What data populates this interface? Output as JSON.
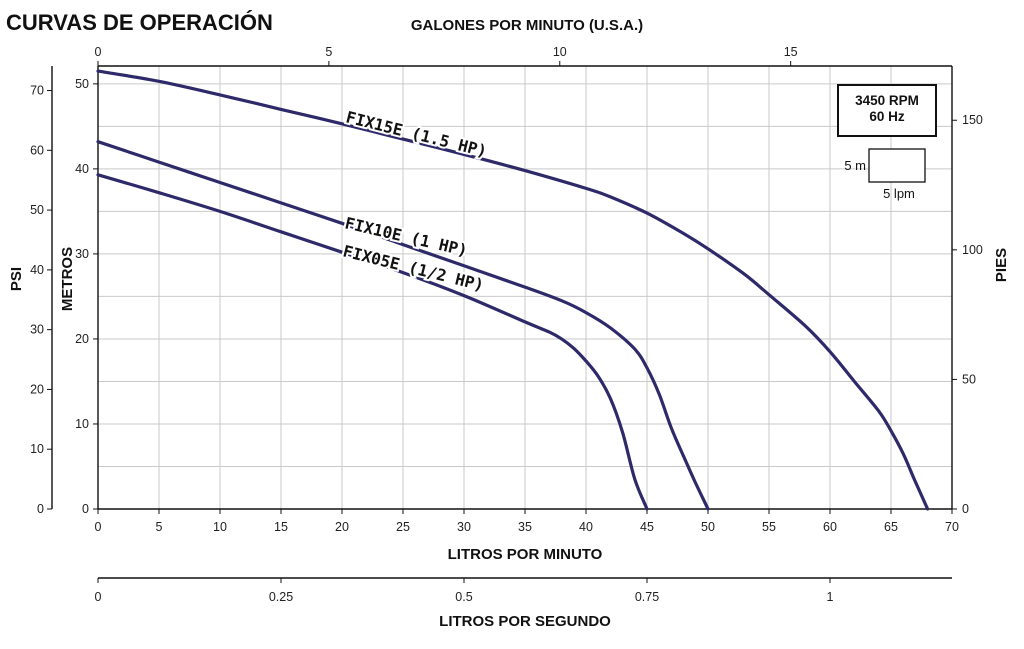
{
  "chart_data": {
    "type": "line",
    "title": "CURVAS DE OPERACIÓN",
    "xlabel": "LITROS POR MINUTO",
    "xlim": [
      0,
      70
    ],
    "x_ticks": [
      0,
      5,
      10,
      15,
      20,
      25,
      30,
      35,
      40,
      45,
      50,
      55,
      60,
      65,
      70
    ],
    "top_axis": {
      "label": "GALONES POR MINUTO (U.S.A.)",
      "ticks": [
        0,
        5,
        10,
        15
      ]
    },
    "bottom_axis2": {
      "label": "LITROS POR SEGUNDO",
      "ticks": [
        "0",
        "0.25",
        "0.5",
        "0.75",
        "1"
      ]
    },
    "left_axis_psi": {
      "label": "PSI",
      "ticks": [
        0,
        10,
        20,
        30,
        40,
        50,
        60,
        70
      ]
    },
    "left_axis_metros": {
      "label": "METROS",
      "ylim": [
        0,
        52.1
      ],
      "ticks": [
        0,
        10,
        20,
        30,
        40,
        50
      ]
    },
    "right_axis_pies": {
      "label": "PIES",
      "ticks": [
        0,
        50,
        100,
        150
      ]
    },
    "grid": true,
    "info_box": {
      "line1": "3450 RPM",
      "line2": "60 Hz"
    },
    "grid_legend": {
      "vertical": "5 m",
      "horizontal": "5 lpm"
    },
    "series": [
      {
        "name": "FIX15E (1.5 HP)",
        "color": "#2e2a6a",
        "x": [
          0,
          5,
          10,
          15,
          20,
          25,
          30,
          35,
          40,
          42,
          45,
          48,
          50,
          53,
          55,
          58,
          60,
          62,
          64,
          65,
          66,
          67,
          68
        ],
        "y": [
          51.5,
          50.3,
          48.7,
          47.0,
          45.3,
          43.5,
          41.7,
          39.8,
          37.7,
          36.7,
          34.8,
          32.4,
          30.6,
          27.6,
          25.2,
          21.5,
          18.5,
          15.0,
          11.5,
          9.2,
          6.5,
          3.2,
          0
        ]
      },
      {
        "name": "FIX10E (1 HP)",
        "color": "#2e2a6a",
        "x": [
          0,
          5,
          10,
          15,
          20,
          25,
          30,
          35,
          38,
          40,
          42,
          44,
          45,
          46,
          47,
          48,
          49,
          50
        ],
        "y": [
          43.2,
          40.8,
          38.4,
          36.0,
          33.6,
          31.1,
          28.6,
          26.1,
          24.5,
          23.1,
          21.3,
          18.8,
          16.6,
          13.5,
          9.5,
          6.2,
          3.0,
          0
        ]
      },
      {
        "name": "FIX05E (1/2 HP)",
        "color": "#2e2a6a",
        "x": [
          0,
          5,
          10,
          15,
          20,
          25,
          30,
          35,
          37,
          38,
          39,
          40,
          41,
          42,
          43,
          44,
          45
        ],
        "y": [
          39.3,
          37.2,
          35.0,
          32.6,
          30.2,
          27.8,
          25.1,
          22.0,
          20.8,
          20.0,
          18.9,
          17.4,
          15.6,
          13.0,
          9.0,
          3.5,
          0
        ]
      }
    ]
  }
}
